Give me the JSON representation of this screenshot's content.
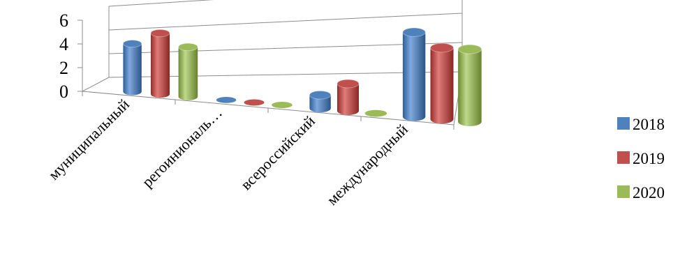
{
  "chart_data": {
    "type": "bar",
    "style": "3d-cylinder",
    "categories": [
      "муниципальный",
      "регоиниональ…",
      "всероссийский",
      "международный"
    ],
    "series": [
      {
        "name": "2018",
        "color": "#4F81BD",
        "values": [
          4,
          0,
          1,
          6
        ]
      },
      {
        "name": "2019",
        "color": "#C0504D",
        "values": [
          5,
          0,
          2,
          5
        ]
      },
      {
        "name": "2020",
        "color": "#9BBB59",
        "values": [
          4,
          0,
          0,
          5
        ]
      }
    ],
    "ylim": [
      0,
      6
    ],
    "yticks": [
      "0",
      "2",
      "4",
      "6"
    ],
    "grid": true,
    "legend": "right"
  }
}
